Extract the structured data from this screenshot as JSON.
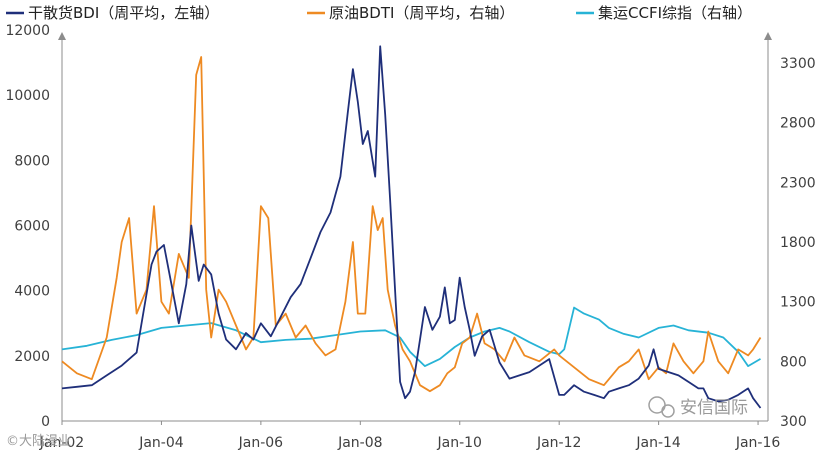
{
  "chart_data": {
    "type": "line",
    "legend": {
      "placement": "top",
      "entries": [
        {
          "label": "干散货BDI（周平均，左轴）",
          "color": "#1f2f7a",
          "axis": "left"
        },
        {
          "label": "原油BDTI（周平均，右轴）",
          "color": "#ee8a22",
          "axis": "right"
        },
        {
          "label": "集运CCFI综指（右轴）",
          "color": "#27b3d6",
          "axis": "right"
        }
      ]
    },
    "x_ticks": [
      "Jan-02",
      "Jan-04",
      "Jan-06",
      "Jan-08",
      "Jan-10",
      "Jan-12",
      "Jan-14",
      "Jan-16"
    ],
    "xlim": [
      2002.0,
      2016.2
    ],
    "y_left": {
      "ticks": [
        0,
        2000,
        4000,
        6000,
        8000,
        10000,
        12000
      ],
      "range": [
        0,
        12000
      ]
    },
    "y_right": {
      "ticks": [
        300,
        800,
        1300,
        1800,
        2300,
        2800,
        3300
      ],
      "range": [
        300,
        3650
      ]
    },
    "series": [
      {
        "name": "干散货BDI（周平均，左轴）",
        "axis": "left",
        "color": "#1f2f7a",
        "x": [
          2002.0,
          2002.3,
          2002.6,
          2002.9,
          2003.2,
          2003.5,
          2003.8,
          2003.9,
          2004.05,
          2004.2,
          2004.35,
          2004.5,
          2004.6,
          2004.75,
          2004.85,
          2005.0,
          2005.15,
          2005.3,
          2005.5,
          2005.7,
          2005.85,
          2006.0,
          2006.2,
          2006.4,
          2006.6,
          2006.8,
          2007.0,
          2007.2,
          2007.4,
          2007.6,
          2007.75,
          2007.85,
          2007.95,
          2008.05,
          2008.15,
          2008.3,
          2008.4,
          2008.5,
          2008.6,
          2008.7,
          2008.8,
          2008.9,
          2009.0,
          2009.1,
          2009.2,
          2009.3,
          2009.45,
          2009.6,
          2009.7,
          2009.8,
          2009.9,
          2010.0,
          2010.1,
          2010.2,
          2010.3,
          2010.45,
          2010.6,
          2010.8,
          2011.0,
          2011.2,
          2011.4,
          2011.6,
          2011.8,
          2012.0,
          2012.1,
          2012.3,
          2012.5,
          2012.7,
          2012.9,
          2013.0,
          2013.2,
          2013.4,
          2013.6,
          2013.8,
          2013.9,
          2014.0,
          2014.2,
          2014.4,
          2014.6,
          2014.8,
          2014.9,
          2015.0,
          2015.2,
          2015.4,
          2015.6,
          2015.8,
          2015.9,
          2016.05
        ],
        "values": [
          1000,
          1050,
          1100,
          1400,
          1700,
          2100,
          4800,
          5200,
          5400,
          4200,
          3000,
          4200,
          6000,
          4300,
          4800,
          4500,
          3300,
          2500,
          2200,
          2700,
          2500,
          3000,
          2600,
          3200,
          3800,
          4200,
          5000,
          5800,
          6400,
          7500,
          9500,
          10800,
          9800,
          8500,
          8900,
          7500,
          11500,
          9400,
          6800,
          4000,
          1200,
          700,
          900,
          1500,
          2500,
          3500,
          2800,
          3200,
          4100,
          3000,
          3100,
          4400,
          3500,
          2800,
          2000,
          2600,
          2800,
          1800,
          1300,
          1400,
          1500,
          1700,
          1900,
          800,
          800,
          1100,
          900,
          800,
          700,
          900,
          1000,
          1100,
          1300,
          1700,
          2200,
          1600,
          1500,
          1400,
          1200,
          1000,
          1000,
          700,
          600,
          650,
          800,
          1000,
          700,
          400
        ]
      },
      {
        "name": "原油BDTI（周平均，右轴）",
        "axis": "right",
        "color": "#ee8a22",
        "x": [
          2002.0,
          2002.3,
          2002.6,
          2002.9,
          2003.1,
          2003.2,
          2003.35,
          2003.5,
          2003.7,
          2003.85,
          2004.0,
          2004.15,
          2004.35,
          2004.55,
          2004.7,
          2004.8,
          2004.9,
          2005.0,
          2005.15,
          2005.3,
          2005.5,
          2005.7,
          2005.85,
          2006.0,
          2006.15,
          2006.3,
          2006.5,
          2006.7,
          2006.9,
          2007.1,
          2007.3,
          2007.5,
          2007.7,
          2007.85,
          2007.95,
          2008.1,
          2008.25,
          2008.35,
          2008.45,
          2008.55,
          2008.7,
          2008.85,
          2009.0,
          2009.2,
          2009.4,
          2009.6,
          2009.75,
          2009.9,
          2010.05,
          2010.2,
          2010.35,
          2010.5,
          2010.7,
          2010.9,
          2011.1,
          2011.3,
          2011.6,
          2011.9,
          2012.0,
          2012.3,
          2012.6,
          2012.9,
          2013.2,
          2013.4,
          2013.6,
          2013.8,
          2014.0,
          2014.15,
          2014.3,
          2014.5,
          2014.7,
          2014.9,
          2015.0,
          2015.2,
          2015.4,
          2015.6,
          2015.8,
          2015.9,
          2016.05
        ],
        "values": [
          800,
          700,
          650,
          1000,
          1500,
          1800,
          2000,
          1200,
          1400,
          2100,
          1300,
          1200,
          1700,
          1500,
          3200,
          3350,
          1400,
          1000,
          1400,
          1300,
          1100,
          900,
          1000,
          2100,
          2000,
          1100,
          1200,
          1000,
          1100,
          950,
          850,
          900,
          1300,
          1800,
          1200,
          1200,
          2100,
          1900,
          2000,
          1400,
          1100,
          900,
          800,
          600,
          550,
          600,
          700,
          750,
          950,
          1000,
          1200,
          950,
          900,
          800,
          1000,
          850,
          800,
          900,
          850,
          750,
          650,
          600,
          750,
          800,
          900,
          650,
          750,
          700,
          950,
          800,
          700,
          800,
          1050,
          800,
          700,
          900,
          850,
          900,
          1000
        ]
      },
      {
        "name": "集运CCFI综指（右轴）",
        "axis": "right",
        "color": "#27b3d6",
        "x": [
          2002.0,
          2002.5,
          2003.0,
          2003.5,
          2004.0,
          2004.5,
          2005.0,
          2005.5,
          2006.0,
          2006.5,
          2007.0,
          2007.5,
          2008.0,
          2008.5,
          2008.8,
          2009.0,
          2009.3,
          2009.6,
          2009.9,
          2010.2,
          2010.5,
          2010.8,
          2011.0,
          2011.4,
          2011.8,
          2012.0,
          2012.1,
          2012.3,
          2012.5,
          2012.8,
          2013.0,
          2013.3,
          2013.6,
          2014.0,
          2014.3,
          2014.6,
          2015.0,
          2015.3,
          2015.6,
          2015.8,
          2016.05
        ],
        "values": [
          900,
          930,
          980,
          1020,
          1080,
          1100,
          1120,
          1060,
          960,
          980,
          990,
          1020,
          1050,
          1060,
          1000,
          880,
          760,
          820,
          920,
          1000,
          1050,
          1080,
          1050,
          960,
          880,
          860,
          900,
          1250,
          1200,
          1150,
          1080,
          1030,
          1000,
          1080,
          1100,
          1060,
          1040,
          1000,
          880,
          760,
          820
        ]
      }
    ]
  },
  "watermarks": {
    "left": "©大陆漫业",
    "right": "安信国际"
  }
}
